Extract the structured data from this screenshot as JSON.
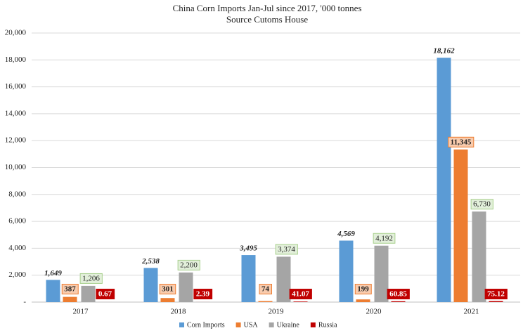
{
  "chart_data": {
    "type": "bar",
    "title": "China Corn Imports Jan-Jul since 2017, '000 tonnes",
    "subtitle": "Source Cutoms House",
    "categories": [
      "2017",
      "2018",
      "2019",
      "2020",
      "2021"
    ],
    "series": [
      {
        "name": "Corn Imports",
        "color": "#5b9bd5",
        "values": [
          1649,
          2538,
          3495,
          4569,
          18162
        ],
        "value_labels": [
          "1,649",
          "2,538",
          "3,495",
          "4,569",
          "18,162"
        ]
      },
      {
        "name": "USA",
        "color": "#ed7d31",
        "values": [
          387,
          301,
          74,
          199,
          11345
        ],
        "value_labels": [
          "387",
          "301",
          "74",
          "199",
          "11,345"
        ]
      },
      {
        "name": "Ukraine",
        "color": "#a5a5a5",
        "values": [
          1206,
          2200,
          3374,
          4192,
          6730
        ],
        "value_labels": [
          "1,206",
          "2,200",
          "3,374",
          "4,192",
          "6,730"
        ]
      },
      {
        "name": "Russia",
        "color": "#c00000",
        "values": [
          0.67,
          2.39,
          41.07,
          60.85,
          75.12
        ],
        "value_labels": [
          "0.67",
          "2.39",
          "41.07",
          "60.85",
          "75.12"
        ]
      }
    ],
    "ylim": [
      0,
      20000
    ],
    "yticks": [
      {
        "value": 0,
        "label": "-"
      },
      {
        "value": 2000,
        "label": "2,000"
      },
      {
        "value": 4000,
        "label": "4,000"
      },
      {
        "value": 6000,
        "label": "6,000"
      },
      {
        "value": 8000,
        "label": "8,000"
      },
      {
        "value": 10000,
        "label": "10,000"
      },
      {
        "value": 12000,
        "label": "12,000"
      },
      {
        "value": 14000,
        "label": "14,000"
      },
      {
        "value": 16000,
        "label": "16,000"
      },
      {
        "value": 18000,
        "label": "18,000"
      },
      {
        "value": 20000,
        "label": "20,000"
      }
    ],
    "grid": true,
    "legend": "bottom"
  }
}
